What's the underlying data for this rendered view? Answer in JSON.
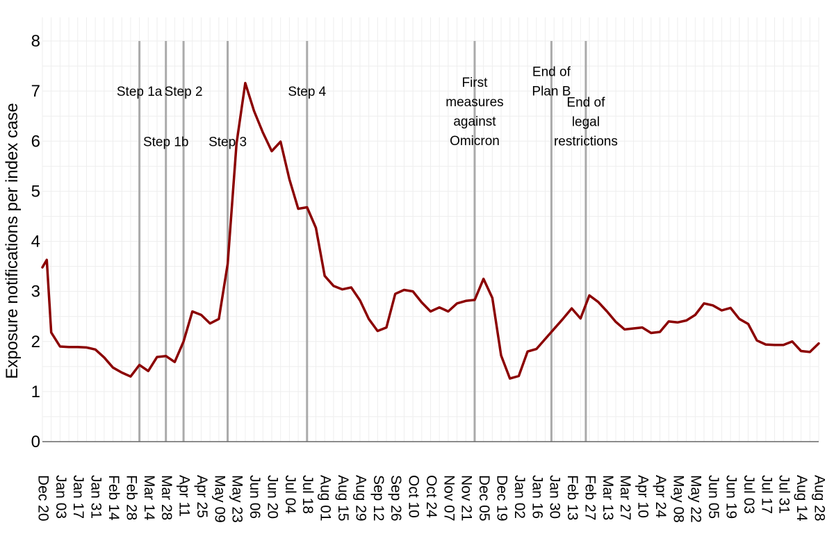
{
  "chart_data": {
    "type": "line",
    "title": "",
    "xlabel": "",
    "ylabel": "Exposure notifications per index case",
    "ylim": [
      0,
      8
    ],
    "y_ticks": [
      "0",
      "1",
      "2",
      "3",
      "4",
      "5",
      "6",
      "7",
      "8"
    ],
    "grid": true,
    "x_tick_labels": [
      "Dec 20",
      "Jan 03",
      "Jan 17",
      "Jan 31",
      "Feb 14",
      "Feb 28",
      "Mar 14",
      "Mar 28",
      "Apr 11",
      "Apr 25",
      "May 09",
      "May 23",
      "Jun 06",
      "Jun 20",
      "Jul 04",
      "Jul 18",
      "Aug 01",
      "Aug 15",
      "Aug 29",
      "Sep 12",
      "Sep 26",
      "Oct 10",
      "Oct 24",
      "Nov 07",
      "Nov 21",
      "Dec 05",
      "Dec 19",
      "Jan 02",
      "Jan 16",
      "Jan 30",
      "Feb 13",
      "Feb 27",
      "Mar 13",
      "Mar 27",
      "Apr 10",
      "Apr 24",
      "May 08",
      "May 22",
      "Jun 05",
      "Jun 19",
      "Jul 03",
      "Jul 17",
      "Jul 31",
      "Aug 14",
      "Aug 28"
    ],
    "x_unit": "weeks from first week (Dec 20)",
    "series": [
      {
        "color": "#8b0000",
        "x": [
          0,
          0.5,
          1,
          2,
          3,
          4,
          5,
          6,
          7,
          8,
          9,
          10,
          11,
          12,
          13,
          14,
          15,
          16,
          17,
          18,
          19,
          20,
          21,
          22,
          23,
          24,
          25,
          26,
          27,
          28,
          29,
          30,
          31,
          32,
          33,
          34,
          35,
          36,
          37,
          38,
          39,
          40,
          41,
          42,
          43,
          44,
          45,
          46,
          47,
          48,
          49,
          50,
          51,
          52,
          53,
          54,
          55,
          56,
          57,
          58,
          59,
          60,
          61,
          62,
          63,
          64,
          65,
          66,
          67,
          68,
          69,
          70,
          71,
          72,
          73,
          74,
          75,
          76,
          77,
          78,
          79,
          80,
          81,
          82,
          83,
          84,
          85,
          86,
          87,
          88
        ],
        "y": [
          3.48,
          3.63,
          2.18,
          1.9,
          1.89,
          1.89,
          1.88,
          1.84,
          1.68,
          1.48,
          1.38,
          1.3,
          1.53,
          1.41,
          1.69,
          1.71,
          1.59,
          2.0,
          2.6,
          2.53,
          2.36,
          2.45,
          3.55,
          5.95,
          7.16,
          6.6,
          6.17,
          5.8,
          5.99,
          5.24,
          4.65,
          4.68,
          4.27,
          3.31,
          3.11,
          3.04,
          3.08,
          2.82,
          2.45,
          2.21,
          2.28,
          2.95,
          3.03,
          3.0,
          2.78,
          2.6,
          2.68,
          2.6,
          2.76,
          2.81,
          2.83,
          3.25,
          2.87,
          1.72,
          1.26,
          1.31,
          1.8,
          1.85,
          2.05,
          2.25,
          2.45,
          2.66,
          2.46,
          2.92,
          2.79,
          2.6,
          2.39,
          2.24,
          2.26,
          2.28,
          2.17,
          2.19,
          2.4,
          2.38,
          2.42,
          2.53,
          2.76,
          2.72,
          2.62,
          2.67,
          2.45,
          2.35,
          2.02,
          1.94,
          1.93,
          1.93,
          2.0,
          1.81,
          1.79,
          1.96
        ]
      }
    ],
    "events": [
      {
        "x": 11,
        "lines": [
          "Step 1a"
        ],
        "label_y": 7.0
      },
      {
        "x": 14,
        "lines": [
          "Step 1b"
        ],
        "label_y": 6.0
      },
      {
        "x": 16,
        "lines": [
          "Step 2"
        ],
        "label_y": 7.0
      },
      {
        "x": 21,
        "lines": [
          "Step 3"
        ],
        "label_y": 6.0
      },
      {
        "x": 30,
        "lines": [
          "Step 4"
        ],
        "label_y": 7.0
      },
      {
        "x": 49,
        "lines": [
          "First",
          "measures",
          "against",
          "Omicron"
        ],
        "label_y": 6.6
      },
      {
        "x": 57.7,
        "lines": [
          "End of",
          "Plan B"
        ],
        "label_y": 7.2
      },
      {
        "x": 61.6,
        "lines": [
          "End of",
          "legal",
          "restrictions"
        ],
        "label_y": 6.4
      }
    ]
  }
}
